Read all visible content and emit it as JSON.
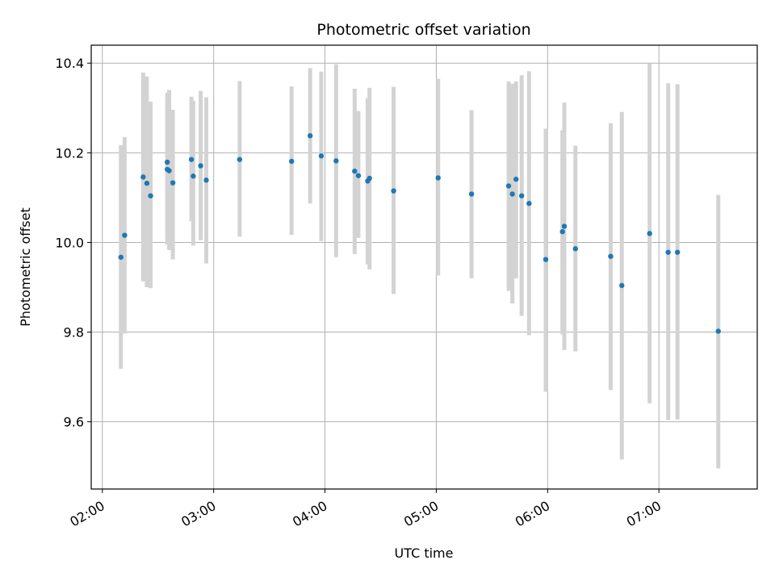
{
  "chart_data": {
    "type": "scatter",
    "title": "Photometric offset variation",
    "xlabel": "UTC time",
    "ylabel": "Photometric offset",
    "x_axis": {
      "unit": "UTC time (HH:MM)",
      "range": [
        "01:54",
        "07:53"
      ],
      "ticks": [
        "02:00",
        "03:00",
        "04:00",
        "05:00",
        "06:00",
        "07:00"
      ]
    },
    "y_axis": {
      "range": [
        9.45,
        10.44
      ],
      "ticks": [
        9.6,
        9.8,
        10.0,
        10.2,
        10.4
      ],
      "tick_labels": [
        "9.6",
        "9.8",
        "10.0",
        "10.2",
        "10.4"
      ]
    },
    "grid": true,
    "legend": "none",
    "colors": {
      "points": "#1f77b4",
      "error_bars": "#d3d3d3",
      "grid": "#b0b0b0"
    },
    "series": [
      {
        "points": [
          {
            "x": "02:10",
            "y": 9.967,
            "ylow": 9.718,
            "yhigh": 10.217
          },
          {
            "x": "02:12",
            "y": 10.016,
            "ylow": 9.797,
            "yhigh": 10.235
          },
          {
            "x": "02:22",
            "y": 10.146,
            "ylow": 9.913,
            "yhigh": 10.379
          },
          {
            "x": "02:24",
            "y": 10.132,
            "ylow": 9.9,
            "yhigh": 10.37
          },
          {
            "x": "02:26",
            "y": 10.104,
            "ylow": 9.898,
            "yhigh": 10.314
          },
          {
            "x": "02:35",
            "y": 10.163,
            "ylow": 10.013,
            "yhigh": 10.322
          },
          {
            "x": "02:35",
            "y": 10.179,
            "ylow": 9.995,
            "yhigh": 10.334
          },
          {
            "x": "02:36",
            "y": 10.16,
            "ylow": 9.983,
            "yhigh": 10.34
          },
          {
            "x": "02:38",
            "y": 10.133,
            "ylow": 9.962,
            "yhigh": 10.296
          },
          {
            "x": "02:48",
            "y": 10.185,
            "ylow": 10.047,
            "yhigh": 10.325
          },
          {
            "x": "02:49",
            "y": 10.148,
            "ylow": 9.993,
            "yhigh": 10.316
          },
          {
            "x": "02:53",
            "y": 10.171,
            "ylow": 10.005,
            "yhigh": 10.338
          },
          {
            "x": "02:56",
            "y": 10.139,
            "ylow": 9.953,
            "yhigh": 10.324
          },
          {
            "x": "03:14",
            "y": 10.185,
            "ylow": 10.013,
            "yhigh": 10.36
          },
          {
            "x": "03:42",
            "y": 10.181,
            "ylow": 10.017,
            "yhigh": 10.348
          },
          {
            "x": "03:52",
            "y": 10.238,
            "ylow": 10.087,
            "yhigh": 10.389
          },
          {
            "x": "03:58",
            "y": 10.193,
            "ylow": 10.003,
            "yhigh": 10.381
          },
          {
            "x": "04:06",
            "y": 10.182,
            "ylow": 9.967,
            "yhigh": 10.398
          },
          {
            "x": "04:16",
            "y": 10.159,
            "ylow": 9.974,
            "yhigh": 10.343
          },
          {
            "x": "04:18",
            "y": 10.149,
            "ylow": 10.01,
            "yhigh": 10.293
          },
          {
            "x": "04:23",
            "y": 10.137,
            "ylow": 9.951,
            "yhigh": 10.322
          },
          {
            "x": "04:24",
            "y": 10.143,
            "ylow": 9.94,
            "yhigh": 10.345
          },
          {
            "x": "04:37",
            "y": 10.115,
            "ylow": 9.885,
            "yhigh": 10.347
          },
          {
            "x": "05:01",
            "y": 10.144,
            "ylow": 9.926,
            "yhigh": 10.365
          },
          {
            "x": "05:19",
            "y": 10.108,
            "ylow": 9.92,
            "yhigh": 10.295
          },
          {
            "x": "05:39",
            "y": 10.126,
            "ylow": 9.892,
            "yhigh": 10.359
          },
          {
            "x": "05:41",
            "y": 10.108,
            "ylow": 9.864,
            "yhigh": 10.354
          },
          {
            "x": "05:43",
            "y": 10.141,
            "ylow": 9.92,
            "yhigh": 10.359
          },
          {
            "x": "05:46",
            "y": 10.104,
            "ylow": 9.836,
            "yhigh": 10.373
          },
          {
            "x": "05:50",
            "y": 10.087,
            "ylow": 9.793,
            "yhigh": 10.382
          },
          {
            "x": "05:59",
            "y": 9.962,
            "ylow": 9.667,
            "yhigh": 10.254
          },
          {
            "x": "06:08",
            "y": 10.024,
            "ylow": 9.795,
            "yhigh": 10.25
          },
          {
            "x": "06:09",
            "y": 10.036,
            "ylow": 9.76,
            "yhigh": 10.312
          },
          {
            "x": "06:15",
            "y": 9.986,
            "ylow": 9.757,
            "yhigh": 10.216
          },
          {
            "x": "06:34",
            "y": 9.969,
            "ylow": 9.671,
            "yhigh": 10.266
          },
          {
            "x": "06:40",
            "y": 9.904,
            "ylow": 9.516,
            "yhigh": 10.291
          },
          {
            "x": "06:55",
            "y": 10.02,
            "ylow": 9.641,
            "yhigh": 10.399
          },
          {
            "x": "07:05",
            "y": 9.978,
            "ylow": 9.604,
            "yhigh": 10.355
          },
          {
            "x": "07:10",
            "y": 9.978,
            "ylow": 9.605,
            "yhigh": 10.353
          },
          {
            "x": "07:32",
            "y": 9.802,
            "ylow": 9.496,
            "yhigh": 10.106
          }
        ]
      }
    ]
  }
}
